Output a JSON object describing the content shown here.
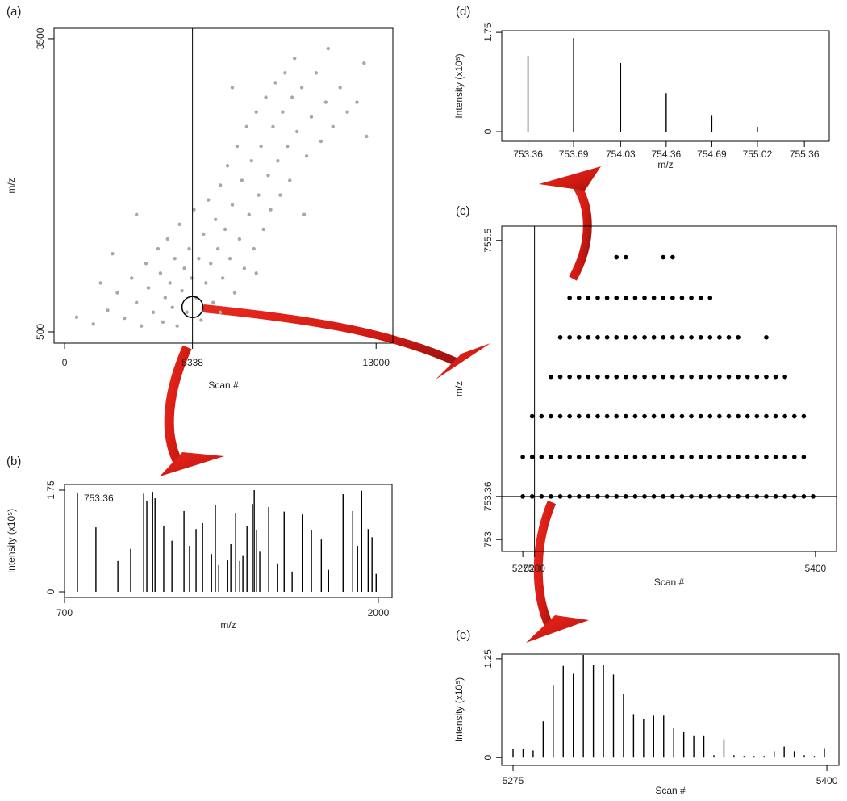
{
  "chart_data": [
    {
      "type": "scatter",
      "panel_label": "(a)",
      "x_label": "Scan #",
      "y_label": "m/z",
      "color": "#a8a8a8",
      "xlim": [
        -440,
        13700
      ],
      "ylim": [
        384,
        3607
      ],
      "xticks": [
        0,
        5338,
        13000
      ],
      "yticks": [
        500,
        3500
      ],
      "highlight": {
        "x": 5338,
        "y": 753.36
      },
      "points": [
        [
          500,
          650
        ],
        [
          1200,
          580
        ],
        [
          1800,
          720
        ],
        [
          2200,
          900
        ],
        [
          2500,
          640
        ],
        [
          2800,
          1050
        ],
        [
          3000,
          800
        ],
        [
          3200,
          560
        ],
        [
          3400,
          1200
        ],
        [
          3500,
          950
        ],
        [
          3700,
          700
        ],
        [
          3900,
          1350
        ],
        [
          4000,
          1100
        ],
        [
          4100,
          600
        ],
        [
          4200,
          850
        ],
        [
          4300,
          1450
        ],
        [
          4400,
          1000
        ],
        [
          4500,
          750
        ],
        [
          4600,
          1250
        ],
        [
          4700,
          560
        ],
        [
          4800,
          1600
        ],
        [
          4900,
          920
        ],
        [
          5000,
          1150
        ],
        [
          5100,
          700
        ],
        [
          5200,
          1350
        ],
        [
          5300,
          1050
        ],
        [
          5400,
          1750
        ],
        [
          5500,
          850
        ],
        [
          5600,
          1250
        ],
        [
          5700,
          620
        ],
        [
          5800,
          1500
        ],
        [
          5900,
          1000
        ],
        [
          6000,
          1850
        ],
        [
          6100,
          1200
        ],
        [
          6200,
          800
        ],
        [
          6300,
          1650
        ],
        [
          6400,
          1350
        ],
        [
          6500,
          2000
        ],
        [
          6600,
          1050
        ],
        [
          6700,
          1550
        ],
        [
          6800,
          2200
        ],
        [
          6900,
          1250
        ],
        [
          7000,
          1800
        ],
        [
          7100,
          900
        ],
        [
          7200,
          2400
        ],
        [
          7300,
          1450
        ],
        [
          7400,
          2050
        ],
        [
          7500,
          1150
        ],
        [
          7600,
          2600
        ],
        [
          7700,
          1700
        ],
        [
          7800,
          2250
        ],
        [
          7900,
          1350
        ],
        [
          8000,
          2750
        ],
        [
          8100,
          1900
        ],
        [
          8200,
          2400
        ],
        [
          8300,
          1550
        ],
        [
          8400,
          2900
        ],
        [
          8500,
          2100
        ],
        [
          8600,
          1750
        ],
        [
          8700,
          2600
        ],
        [
          8800,
          3050
        ],
        [
          8900,
          2250
        ],
        [
          9000,
          1900
        ],
        [
          9100,
          2750
        ],
        [
          9200,
          3150
        ],
        [
          9300,
          2400
        ],
        [
          9400,
          2050
        ],
        [
          9500,
          2900
        ],
        [
          9700,
          2550
        ],
        [
          9900,
          3000
        ],
        [
          10100,
          2300
        ],
        [
          10300,
          2700
        ],
        [
          10500,
          3150
        ],
        [
          10700,
          2450
        ],
        [
          10900,
          2850
        ],
        [
          11200,
          2600
        ],
        [
          11500,
          3000
        ],
        [
          11800,
          2750
        ],
        [
          12200,
          2850
        ],
        [
          12500,
          3250
        ],
        [
          12600,
          2500
        ],
        [
          11000,
          3400
        ],
        [
          9600,
          3300
        ],
        [
          7000,
          3000
        ],
        [
          3000,
          1700
        ],
        [
          2000,
          1300
        ],
        [
          6500,
          700
        ],
        [
          8000,
          1100
        ],
        [
          1500,
          1000
        ],
        [
          10000,
          1700
        ]
      ]
    },
    {
      "type": "stem",
      "panel_label": "(b)",
      "x_label": "m/z",
      "y_label": "Intensity (x10⁵)",
      "color": "#000000",
      "xlim": [
        700,
        2057
      ],
      "ylim": [
        -0.097,
        1.847
      ],
      "xticks": [
        700,
        2000
      ],
      "yticks": [
        0,
        1.75
      ],
      "annotation": "753.36",
      "x": [
        753.36,
        830,
        921,
        974,
        1028,
        1041,
        1065,
        1075,
        1111,
        1145,
        1195,
        1218,
        1245,
        1272,
        1309,
        1325,
        1339,
        1376,
        1389,
        1409,
        1426,
        1439,
        1456,
        1479,
        1486,
        1496,
        1509,
        1546,
        1583,
        1610,
        1643,
        1687,
        1723,
        1764,
        1794,
        1854,
        1894,
        1914,
        1931,
        1958,
        1974,
        1991
      ],
      "values": [
        1.71,
        1.11,
        0.53,
        0.74,
        1.69,
        1.57,
        1.72,
        1.61,
        1.14,
        0.88,
        1.39,
        0.79,
        1.08,
        1.18,
        0.65,
        1.5,
        0.46,
        0.54,
        0.82,
        1.36,
        0.53,
        0.63,
        1.13,
        1.51,
        1.75,
        1.07,
        0.69,
        1.46,
        0.49,
        1.38,
        0.35,
        1.33,
        1.07,
        0.9,
        0.38,
        1.68,
        1.39,
        0.79,
        1.74,
        1.08,
        0.94,
        0.31
      ]
    },
    {
      "type": "dotmap",
      "panel_label": "(c)",
      "x_label": "Scan #",
      "y_label": "m/z",
      "color": "#000000",
      "xlim": [
        5266,
        5409
      ],
      "ylim": [
        752.9,
        755.62
      ],
      "xticks": [
        5275,
        5280,
        5400
      ],
      "yticks": [
        753.0,
        753.36,
        755.5
      ],
      "crosshair": {
        "x": 5280,
        "y": 753.36
      },
      "rows": [
        {
          "y": 753.36,
          "x": [
            5275,
            5279,
            5283,
            5287,
            5291,
            5295,
            5299,
            5303,
            5307,
            5311,
            5315,
            5319,
            5323,
            5327,
            5331,
            5335,
            5339,
            5343,
            5347,
            5351,
            5355,
            5359,
            5363,
            5367,
            5371,
            5375,
            5379,
            5383,
            5387,
            5391,
            5395,
            5399
          ]
        },
        {
          "y": 753.69,
          "x": [
            5275,
            5279,
            5283,
            5287,
            5291,
            5295,
            5299,
            5303,
            5307,
            5311,
            5315,
            5319,
            5323,
            5327,
            5331,
            5335,
            5339,
            5343,
            5347,
            5351,
            5355,
            5359,
            5363,
            5367,
            5371,
            5375,
            5379,
            5383,
            5387,
            5391,
            5395
          ]
        },
        {
          "y": 754.03,
          "x": [
            5279,
            5283,
            5287,
            5291,
            5295,
            5299,
            5303,
            5307,
            5311,
            5315,
            5319,
            5323,
            5327,
            5331,
            5335,
            5339,
            5343,
            5347,
            5351,
            5355,
            5359,
            5363,
            5367,
            5371,
            5375,
            5379,
            5383,
            5387,
            5391,
            5395
          ]
        },
        {
          "y": 754.36,
          "x": [
            5287,
            5291,
            5295,
            5299,
            5303,
            5307,
            5311,
            5315,
            5319,
            5323,
            5327,
            5331,
            5335,
            5339,
            5343,
            5347,
            5351,
            5355,
            5359,
            5363,
            5367,
            5371,
            5375,
            5379,
            5383,
            5387
          ]
        },
        {
          "y": 754.69,
          "x": [
            5291,
            5295,
            5299,
            5303,
            5307,
            5311,
            5315,
            5319,
            5323,
            5327,
            5331,
            5335,
            5339,
            5343,
            5347,
            5351,
            5355,
            5359,
            5363,
            5367,
            5379
          ]
        },
        {
          "y": 755.02,
          "x": [
            5295,
            5299,
            5303,
            5307,
            5311,
            5315,
            5319,
            5323,
            5327,
            5331,
            5335,
            5339,
            5343,
            5347,
            5351,
            5355
          ]
        },
        {
          "y": 755.36,
          "x": [
            5315,
            5319,
            5335,
            5339
          ]
        }
      ]
    },
    {
      "type": "stem",
      "panel_label": "(d)",
      "x_label": "m/z",
      "y_label": "Intensity (x10⁵)",
      "color": "#000000",
      "xlim": [
        753.17,
        755.54
      ],
      "ylim": [
        -0.17,
        1.78
      ],
      "xticks": [
        753.36,
        753.69,
        754.03,
        754.36,
        754.69,
        755.02,
        755.36
      ],
      "yticks": [
        0,
        1.75
      ],
      "x": [
        753.36,
        753.69,
        754.03,
        754.36,
        754.69,
        755.02
      ],
      "values": [
        1.34,
        1.65,
        1.21,
        0.68,
        0.28,
        0.085
      ]
    },
    {
      "type": "stem",
      "panel_label": "(e)",
      "x_label": "Scan #",
      "y_label": "Intensity (x10⁵)",
      "color": "#000000",
      "xlim": [
        5270.5,
        5404.8
      ],
      "ylim": [
        -0.1,
        1.31
      ],
      "xticks": [
        5275,
        5400
      ],
      "yticks": [
        0,
        1.25
      ],
      "x": [
        5275,
        5279,
        5283,
        5287,
        5291,
        5295,
        5299,
        5303,
        5307,
        5311,
        5315,
        5319,
        5323,
        5327,
        5331,
        5335,
        5339,
        5343,
        5347,
        5351,
        5355,
        5359,
        5363,
        5367,
        5371,
        5375,
        5379,
        5383,
        5387,
        5391,
        5395,
        5399
      ],
      "values": [
        0.11,
        0.11,
        0.09,
        0.46,
        0.92,
        1.16,
        1.06,
        1.3,
        1.17,
        1.17,
        1.05,
        0.8,
        0.55,
        0.49,
        0.53,
        0.53,
        0.37,
        0.32,
        0.28,
        0.28,
        0.03,
        0.23,
        0.03,
        0.02,
        0.02,
        0.02,
        0.08,
        0.14,
        0.08,
        0.03,
        0.02,
        0.12
      ]
    }
  ]
}
